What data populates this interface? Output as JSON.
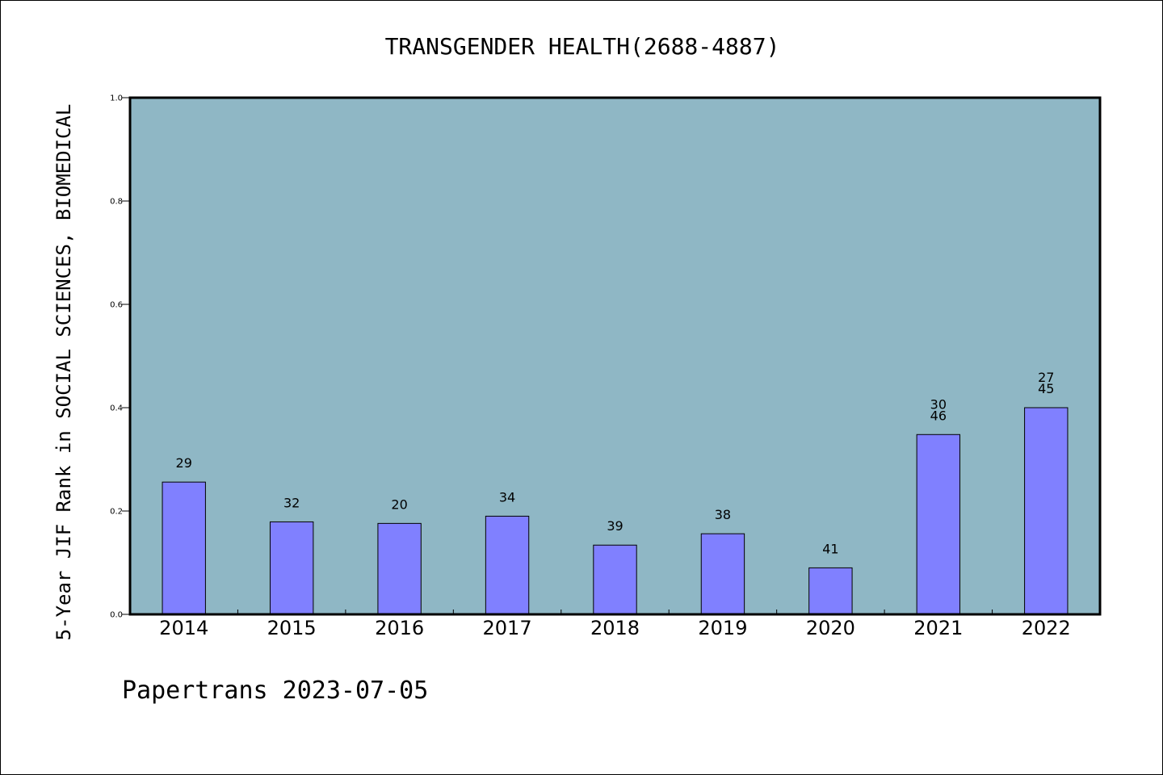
{
  "chart_data": {
    "type": "bar",
    "title": "TRANSGENDER HEALTH(2688-4887)",
    "xlabel": "",
    "ylabel": "5-Year JIF Rank in SOCIAL SCIENCES, BIOMEDICAL",
    "categories": [
      "2014",
      "2015",
      "2016",
      "2017",
      "2018",
      "2019",
      "2020",
      "2021",
      "2022"
    ],
    "values": [
      0.256,
      0.179,
      0.176,
      0.19,
      0.134,
      0.156,
      0.09,
      0.348,
      0.4
    ],
    "bar_labels": [
      [
        "29"
      ],
      [
        "32"
      ],
      [
        "20"
      ],
      [
        "34"
      ],
      [
        "39"
      ],
      [
        "38"
      ],
      [
        "41"
      ],
      [
        "30",
        "46"
      ],
      [
        "27",
        "45"
      ]
    ],
    "ylim": [
      0,
      1.0
    ],
    "yticks": [
      "0.0",
      "0.2",
      "0.4",
      "0.6",
      "0.8",
      "1.0"
    ],
    "grid": false,
    "colors": {
      "plot_background": "#8FB7C5",
      "bar_fill": "#8080FF",
      "bar_edge": "#000000"
    }
  },
  "footer": {
    "text": "Papertrans 2023-07-05"
  }
}
